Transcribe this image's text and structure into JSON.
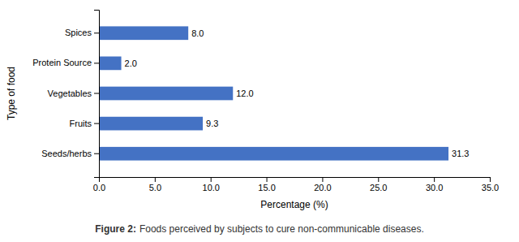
{
  "chart_data": {
    "type": "bar",
    "orientation": "horizontal",
    "categories": [
      "Seeds/herbs",
      "Fruits",
      "Vegetables",
      "Protein Source",
      "Spices"
    ],
    "values": [
      31.3,
      9.3,
      12.0,
      2.0,
      8.0
    ],
    "value_labels": [
      "31.3",
      "9.3",
      "12.0",
      "2.0",
      "8.0"
    ],
    "data_labels": true,
    "color": "#4472c4",
    "xlabel": "Percentage (%)",
    "ylabel": "Type of food",
    "xlim": [
      0,
      35.0
    ],
    "xticks": [
      {
        "value": 0.0,
        "label": "0.0"
      },
      {
        "value": 5.0,
        "label": "5.0"
      },
      {
        "value": 10.0,
        "label": "10.0"
      },
      {
        "value": 15.0,
        "label": "15.0"
      },
      {
        "value": 20.0,
        "label": "20.0"
      },
      {
        "value": 25.0,
        "label": "25.0"
      },
      {
        "value": 30.0,
        "label": "30.0"
      },
      {
        "value": 35.0,
        "label": "35.0"
      }
    ],
    "grid": false,
    "caption": [
      "Figure 2:",
      "Foods perceived by subjects to cure non-communicable diseases."
    ]
  }
}
